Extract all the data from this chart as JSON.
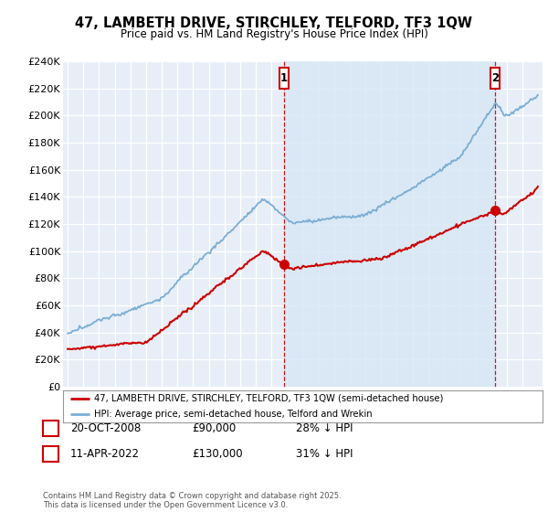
{
  "title": "47, LAMBETH DRIVE, STIRCHLEY, TELFORD, TF3 1QW",
  "subtitle": "Price paid vs. HM Land Registry's House Price Index (HPI)",
  "ylim": [
    0,
    240000
  ],
  "yticks": [
    0,
    20000,
    40000,
    60000,
    80000,
    100000,
    120000,
    140000,
    160000,
    180000,
    200000,
    220000,
    240000
  ],
  "ytick_labels": [
    "£0",
    "£20K",
    "£40K",
    "£60K",
    "£80K",
    "£100K",
    "£120K",
    "£140K",
    "£160K",
    "£180K",
    "£200K",
    "£220K",
    "£240K"
  ],
  "xlim_start": 1994.7,
  "xlim_end": 2025.3,
  "sale1_year": 2008.8,
  "sale1_price": 90000,
  "sale1_label": "1",
  "sale1_date": "20-OCT-2008",
  "sale1_amount": "£90,000",
  "sale1_pct": "28% ↓ HPI",
  "sale2_year": 2022.27,
  "sale2_price": 130000,
  "sale2_label": "2",
  "sale2_date": "11-APR-2022",
  "sale2_amount": "£130,000",
  "sale2_pct": "31% ↓ HPI",
  "property_line_color": "#cc0000",
  "hpi_line_color": "#7aadd4",
  "shade_color": "#d8e8f5",
  "legend_property": "47, LAMBETH DRIVE, STIRCHLEY, TELFORD, TF3 1QW (semi-detached house)",
  "legend_hpi": "HPI: Average price, semi-detached house, Telford and Wrekin",
  "footer": "Contains HM Land Registry data © Crown copyright and database right 2025.\nThis data is licensed under the Open Government Licence v3.0.",
  "background_color": "#e8eef8",
  "fig_background": "#ffffff"
}
